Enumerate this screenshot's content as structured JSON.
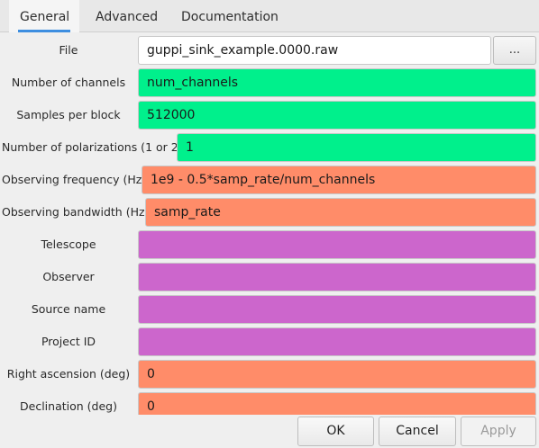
{
  "tabs": [
    {
      "label": "General"
    },
    {
      "label": "Advanced"
    },
    {
      "label": "Documentation"
    }
  ],
  "file": {
    "label": "File",
    "value": "guppi_sink_example.0000.raw",
    "browse_label": "..."
  },
  "fields": [
    {
      "label": "Number of channels",
      "value": "num_channels",
      "color": "#00f08c"
    },
    {
      "label": "Samples per block",
      "value": "512000",
      "color": "#00f08c"
    },
    {
      "label": "Number of polarizations (1 or 2)",
      "value": "1",
      "color": "#00f08c"
    },
    {
      "label": "Observing frequency (Hz)",
      "value": "1e9 - 0.5*samp_rate/num_channels",
      "color": "#ff8c69"
    },
    {
      "label": "Observing bandwidth (Hz)",
      "value": "samp_rate",
      "color": "#ff8c69"
    },
    {
      "label": "Telescope",
      "value": "",
      "color": "#cc66cc"
    },
    {
      "label": "Observer",
      "value": "",
      "color": "#cc66cc"
    },
    {
      "label": "Source name",
      "value": "",
      "color": "#cc66cc"
    },
    {
      "label": "Project ID",
      "value": "",
      "color": "#cc66cc"
    },
    {
      "label": "Right ascension (deg)",
      "value": "0",
      "color": "#ff8c69"
    },
    {
      "label": "Declination (deg)",
      "value": "0",
      "color": "#ff8c69"
    }
  ],
  "buttons": {
    "ok": "OK",
    "cancel": "Cancel",
    "apply": "Apply"
  }
}
